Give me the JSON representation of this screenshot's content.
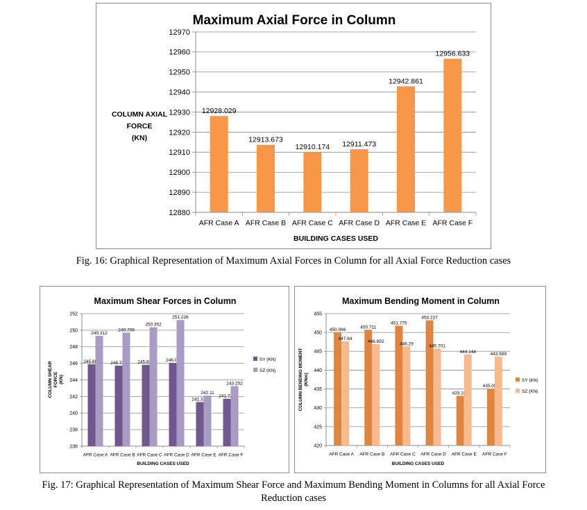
{
  "charts": [
    {
      "type": "bar",
      "title": "Maximum Axial Force in Column",
      "ylabel_lines": [
        "COLUMN AXIAL",
        "FORCE",
        "(KN)"
      ],
      "xlabel": "BUILDING CASES USED",
      "categories": [
        "AFR Case A",
        "AFR Case B",
        "AFR Case C",
        "AFR Case D",
        "AFR Case E",
        "AFR Case F"
      ],
      "ylim": [
        12880,
        12970
      ],
      "yticks": [
        12880,
        12890,
        12900,
        12910,
        12920,
        12930,
        12940,
        12950,
        12960,
        12970
      ],
      "grid": true,
      "legend": "none",
      "series": [
        {
          "values": [
            12928.029,
            12913.673,
            12910.174,
            12911.473,
            12942.861,
            12956.633
          ],
          "labels": [
            "12928.029",
            "12913.673",
            "12910.174",
            "12911.473",
            "12942.861",
            "12956.633"
          ],
          "color": "#f79646"
        }
      ]
    },
    {
      "type": "bar",
      "title": "Maximum Shear Forces in Column",
      "ylabel_lines": [
        "COLUMN SHEAR",
        "FORCE",
        "(KN)"
      ],
      "xlabel": "BUILDING CASES USED",
      "categories": [
        "AFR Case A",
        "AFR Case B",
        "AFR Case C",
        "AFR Case D",
        "AFR Case E",
        "AFR Case F"
      ],
      "ylim": [
        236,
        252
      ],
      "yticks": [
        236,
        238,
        240,
        242,
        244,
        246,
        248,
        250,
        252
      ],
      "grid": true,
      "legend": "right",
      "series": [
        {
          "name": "SY (KN)",
          "values": [
            245.883,
            245.723,
            245.823,
            246.05,
            241.327,
            241.725
          ],
          "labels": [
            "245.883",
            "245.723",
            "245.823",
            "246.05",
            "241.327",
            "241.725"
          ],
          "color": "#70588f"
        },
        {
          "name": "SZ (KN)",
          "values": [
            249.312,
            249.709,
            250.352,
            251.226,
            242.11,
            243.252
          ],
          "labels": [
            "249.312",
            "249.709",
            "250.352",
            "251.226",
            "242.11",
            "243.252"
          ],
          "color": "#a99bc4"
        }
      ]
    },
    {
      "type": "bar",
      "title": "Maximum Bending Moment in Column",
      "ylabel_lines": [
        "COLUMN BENDING MOMENT",
        "(KNm)"
      ],
      "xlabel": "BUILDING CASES USED",
      "categories": [
        "AFR Case A",
        "AFR Case B",
        "AFR Case C",
        "AFR Case D",
        "AFR Case E",
        "AFR Case F"
      ],
      "ylim": [
        420,
        455
      ],
      "yticks": [
        420,
        425,
        430,
        435,
        440,
        445,
        450,
        455
      ],
      "grid": true,
      "legend": "right",
      "series": [
        {
          "name": "SY (KN)",
          "values": [
            450.066,
            450.711,
            451.775,
            453.227,
            433.181,
            435.091
          ],
          "labels": [
            "450.066",
            "450.711",
            "451.775",
            "453.227",
            "433.181",
            "435.091"
          ],
          "color": "#e0853f"
        },
        {
          "name": "SZ (KN)",
          "values": [
            447.64,
            446.892,
            446.29,
            445.701,
            444.144,
            443.589
          ],
          "labels": [
            "447.64",
            "446.892",
            "446.29",
            "445.701",
            "444.144",
            "443.589"
          ],
          "color": "#f9b98f"
        }
      ]
    }
  ],
  "captions": {
    "fig16": "Fig. 16: Graphical Representation of Maximum Axial Forces in Column for all Axial Force Reduction cases",
    "fig17_line1": "Fig. 17: Graphical Representation of Maximum Shear Force and Maximum Bending Moment in Columns for all Axial Force",
    "fig17_line2": "Reduction cases"
  }
}
